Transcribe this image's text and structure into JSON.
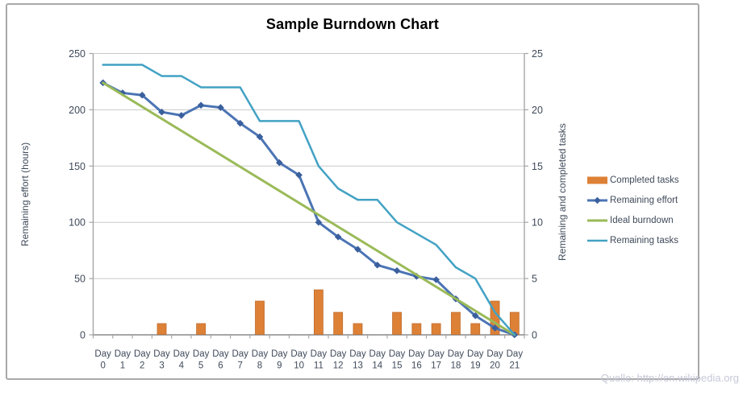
{
  "title": "Sample Burndown Chart",
  "source_note": "Quelle: http://en.wikipedia.org",
  "colors": {
    "frame_border": "#a8a8a8",
    "gridline": "#c9c9c9",
    "axis_line": "#a6a6a6",
    "axis_text": "#3f4a5a",
    "title_text": "#000000",
    "source_text": "#c7c8d9",
    "completed_bar": "#dd8137",
    "completed_bar_border": "#c06c2a",
    "remaining_effort_line": "#4b74b4",
    "remaining_effort_marker": "#3a5f9d",
    "ideal_burndown_line": "#9aba58",
    "remaining_tasks_line": "#42a2c4"
  },
  "chart_data": {
    "type": "combo",
    "title": "Sample Burndown Chart",
    "grid": "horizontal",
    "legend_position": "right",
    "axis_left": {
      "title": "Remaining effort (hours)",
      "min": 0,
      "max": 250,
      "ticks": [
        250,
        200,
        150,
        100,
        50,
        0
      ]
    },
    "axis_right": {
      "title": "Remaining and completed tasks",
      "min": 0,
      "max": 25,
      "ticks": [
        25,
        20,
        15,
        10,
        5,
        0
      ]
    },
    "x_axis": {
      "label_prefix": "Day",
      "categories": [
        0,
        1,
        2,
        3,
        4,
        5,
        6,
        7,
        8,
        9,
        10,
        11,
        12,
        13,
        14,
        15,
        16,
        17,
        18,
        19,
        20,
        21
      ]
    },
    "series": [
      {
        "name": "Completed tasks",
        "type": "bar",
        "axis": "right",
        "color": "#dd8137",
        "values": [
          0,
          0,
          0,
          1,
          0,
          1,
          0,
          0,
          3,
          0,
          0,
          4,
          2,
          1,
          0,
          2,
          1,
          1,
          2,
          1,
          3,
          2
        ]
      },
      {
        "name": "Remaining effort",
        "type": "line",
        "axis": "left",
        "marker": "diamond",
        "color": "#4b74b4",
        "marker_color": "#3a5f9d",
        "values": [
          224,
          215,
          213,
          198,
          195,
          204,
          202,
          188,
          176,
          153,
          142,
          100,
          87,
          76,
          62,
          57,
          52,
          49,
          32,
          17,
          6,
          0
        ]
      },
      {
        "name": "Ideal burndown",
        "type": "line",
        "axis": "left",
        "color": "#9aba58",
        "x": [
          0,
          21
        ],
        "values": [
          224,
          0
        ]
      },
      {
        "name": "Remaining tasks",
        "type": "line",
        "axis": "right",
        "color": "#42a2c4",
        "values": [
          24,
          24,
          24,
          23,
          23,
          22,
          22,
          22,
          19,
          19,
          19,
          15,
          13,
          12,
          12,
          10,
          9,
          8,
          6,
          5,
          2,
          0
        ]
      }
    ]
  }
}
